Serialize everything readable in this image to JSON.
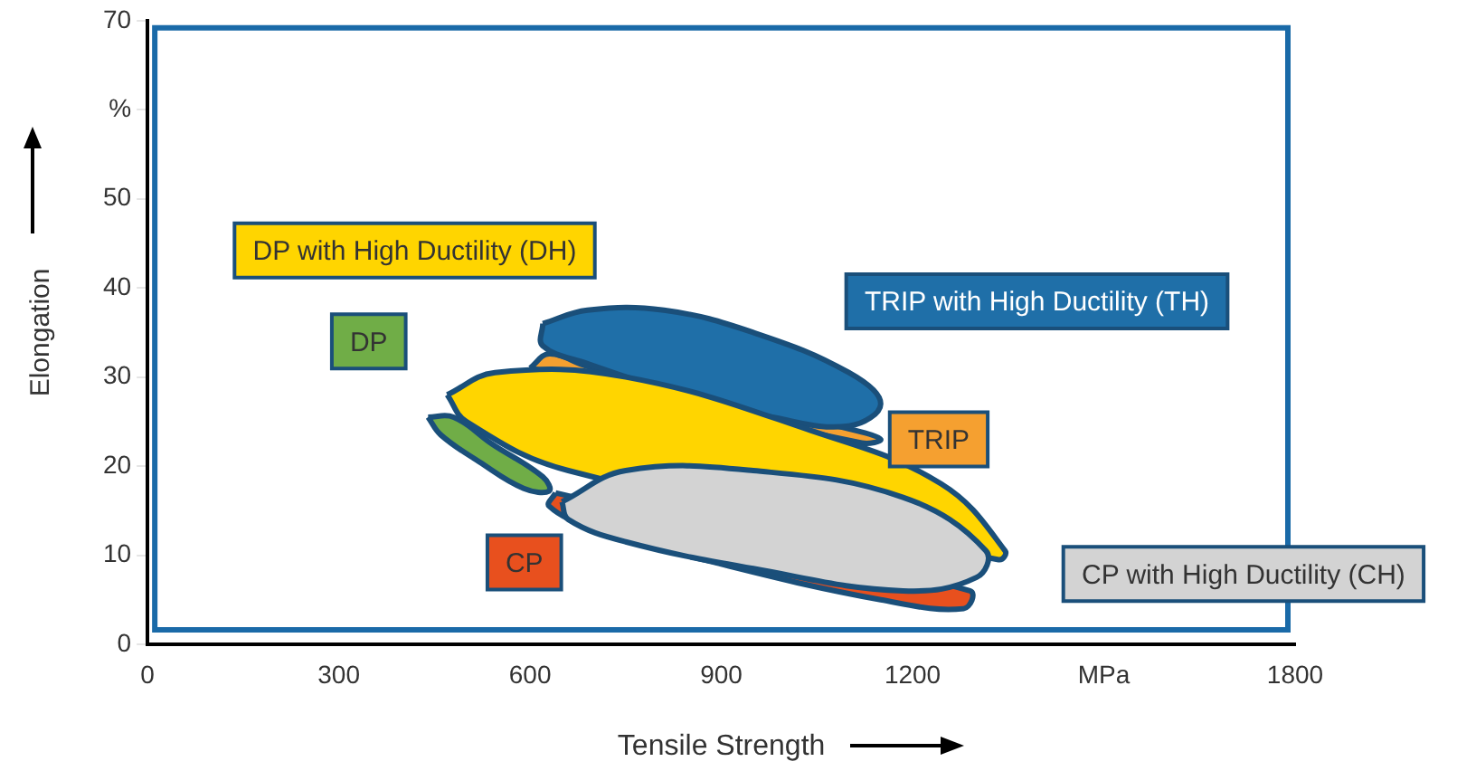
{
  "chart_data": {
    "type": "area",
    "xlabel": "Tensile Strength",
    "ylabel": "Elongation",
    "xlim": [
      0,
      1800
    ],
    "xticks": [
      0,
      300,
      600,
      900,
      1200,
      {
        "value": 1500,
        "label": "MPa"
      },
      1800
    ],
    "ylim": [
      0,
      70
    ],
    "yticks": [
      0,
      10,
      20,
      30,
      40,
      50,
      {
        "value": 60,
        "label": "%"
      },
      70
    ],
    "grid": false,
    "legend": false,
    "marker": "none",
    "series": [
      {
        "name": "TRIP",
        "color": "#f5a030",
        "x": [
          600,
          630,
          690,
          1110,
          1150,
          1120,
          600
        ],
        "values": [
          31,
          32.6,
          31.2,
          24,
          23,
          22.6,
          31
        ]
      },
      {
        "name": "DP",
        "color": "#70ad47",
        "x": [
          440,
          480,
          540,
          620,
          630,
          590,
          520,
          460,
          440
        ],
        "values": [
          25.5,
          25.5,
          22.5,
          18.8,
          17.2,
          17.5,
          20.5,
          23.5,
          25.5
        ]
      },
      {
        "name": "TRIP with High Ductility (TH)",
        "color": "#1f6fa8",
        "x": [
          620,
          690,
          810,
          950,
          1100,
          1150,
          1100,
          980,
          840,
          690,
          620,
          620
        ],
        "values": [
          36,
          37.5,
          37.5,
          35,
          30.5,
          27,
          24.5,
          25.5,
          28,
          31.5,
          33.5,
          36
        ]
      },
      {
        "name": "DP with High Ductility (DH)",
        "color": "#ffd500",
        "x": [
          470,
          545,
          750,
          1040,
          1245,
          1345,
          1335,
          660,
          500,
          470
        ],
        "values": [
          28,
          30.5,
          30,
          24,
          18,
          10.5,
          9.5,
          19.5,
          25,
          28
        ]
      },
      {
        "name": "CP",
        "color": "#e8501e",
        "x": [
          640,
          1290,
          1280,
          1150,
          900,
          700,
          630,
          640
        ],
        "values": [
          17,
          6,
          4,
          5,
          9,
          13,
          15.5,
          17
        ]
      },
      {
        "name": "CP with High Ductility (CH)",
        "color": "#d3d3d3",
        "x": [
          650,
          750,
          950,
          1185,
          1315,
          1300,
          1185,
          950,
          750,
          660,
          650
        ],
        "values": [
          16,
          19.5,
          19.5,
          16.5,
          10.5,
          7.5,
          6,
          8.5,
          11.5,
          14,
          16
        ]
      }
    ]
  }
}
